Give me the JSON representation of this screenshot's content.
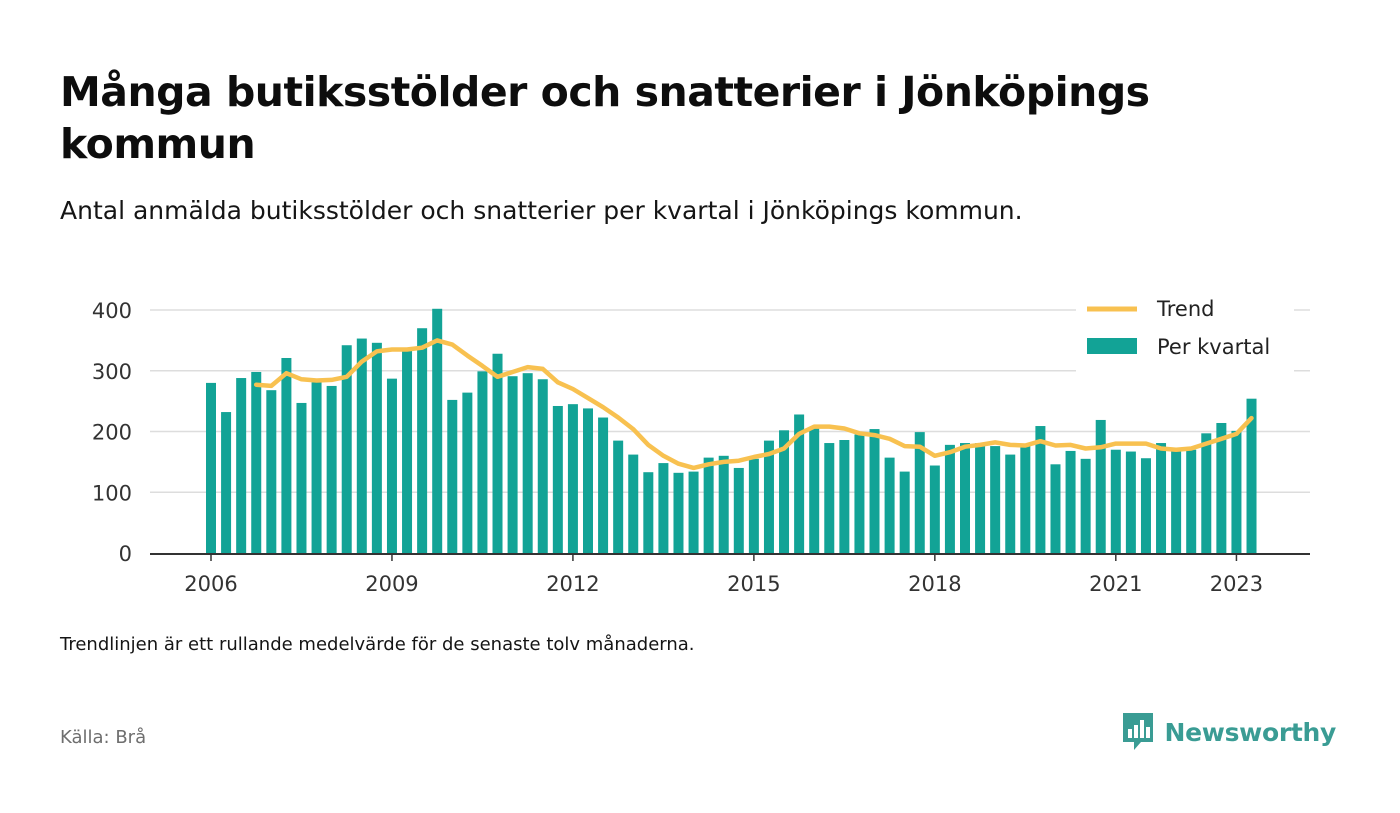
{
  "title": "Många butiksstölder och snatterier i Jönköpings kommun",
  "subtitle": "Antal anmälda butiksstölder och snatterier per kvartal i Jönköpings kommun.",
  "note": "Trendlinjen är ett rullande medelvärde för de senaste tolv månaderna.",
  "source": "Källa: Brå",
  "brand": {
    "name": "Newsworthy",
    "logo_icon": "newsworthy-bar-chart-icon",
    "color": "#3a9c94"
  },
  "chart_data": {
    "type": "bar",
    "x_start": "2006 Q1",
    "x_ticks": [
      "2006",
      "2009",
      "2012",
      "2015",
      "2018",
      "2021",
      "2023"
    ],
    "y_ticks": [
      "0",
      "100",
      "200",
      "300",
      "400"
    ],
    "ylim": [
      0,
      430
    ],
    "grid": true,
    "legend_position": "top-right",
    "colors": {
      "bar": "#12a396",
      "trend": "#f8c150",
      "grid": "#dddddd",
      "axis": "#333333"
    },
    "series": [
      {
        "name": "Per kvartal",
        "kind": "bar",
        "values": [
          280,
          232,
          288,
          298,
          268,
          321,
          247,
          281,
          275,
          342,
          353,
          346,
          287,
          337,
          370,
          402,
          252,
          264,
          299,
          328,
          291,
          296,
          286,
          242,
          245,
          238,
          223,
          185,
          162,
          133,
          148,
          132,
          134,
          157,
          160,
          140,
          155,
          185,
          202,
          228,
          208,
          181,
          186,
          195,
          204,
          157,
          134,
          199,
          144,
          178,
          181,
          181,
          176,
          162,
          179,
          209,
          146,
          168,
          155,
          219,
          170,
          167,
          156,
          181,
          170,
          170,
          197,
          214,
          201,
          254
        ]
      },
      {
        "name": "Trend",
        "kind": "line",
        "values": [
          null,
          null,
          null,
          277,
          275,
          296,
          286,
          284,
          285,
          290,
          315,
          332,
          335,
          335,
          338,
          350,
          343,
          325,
          308,
          290,
          298,
          306,
          303,
          281,
          270,
          255,
          240,
          223,
          204,
          178,
          160,
          147,
          140,
          146,
          150,
          152,
          158,
          163,
          172,
          196,
          208,
          208,
          205,
          197,
          194,
          188,
          176,
          175,
          160,
          166,
          175,
          178,
          182,
          178,
          177,
          184,
          177,
          178,
          172,
          174,
          180,
          180,
          180,
          172,
          170,
          172,
          180,
          188,
          196,
          222
        ]
      }
    ]
  }
}
